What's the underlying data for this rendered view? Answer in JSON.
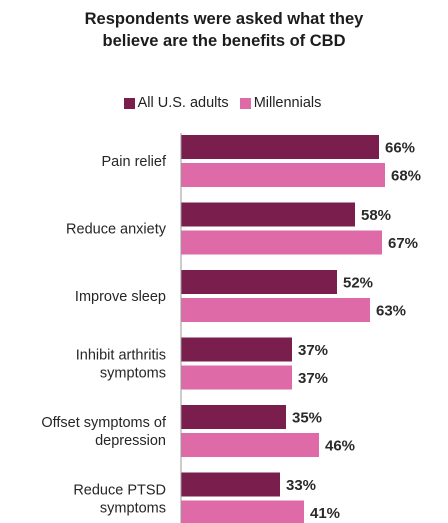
{
  "title_line1": "Respondents were asked what they",
  "title_line2": "believe are the benefits of CBD",
  "colors": {
    "all_adults": "#7a1e4e",
    "millennials": "#de6aa8"
  },
  "chart_data": {
    "type": "bar",
    "orientation": "horizontal",
    "title": "Respondents were asked what they believe are the benefits of CBD",
    "categories": [
      [
        "Pain relief"
      ],
      [
        "Reduce anxiety"
      ],
      [
        "Improve sleep"
      ],
      [
        "Inhibit arthritis",
        "symptoms"
      ],
      [
        "Offset symptoms of",
        "depression"
      ],
      [
        "Reduce PTSD",
        "symptoms"
      ]
    ],
    "series": [
      {
        "name": "All U.S. adults",
        "values": [
          66,
          58,
          52,
          37,
          35,
          33
        ]
      },
      {
        "name": "Millennials",
        "values": [
          68,
          67,
          63,
          37,
          46,
          41
        ]
      }
    ],
    "value_suffix": "%",
    "legend_position": "top",
    "grid": false
  }
}
